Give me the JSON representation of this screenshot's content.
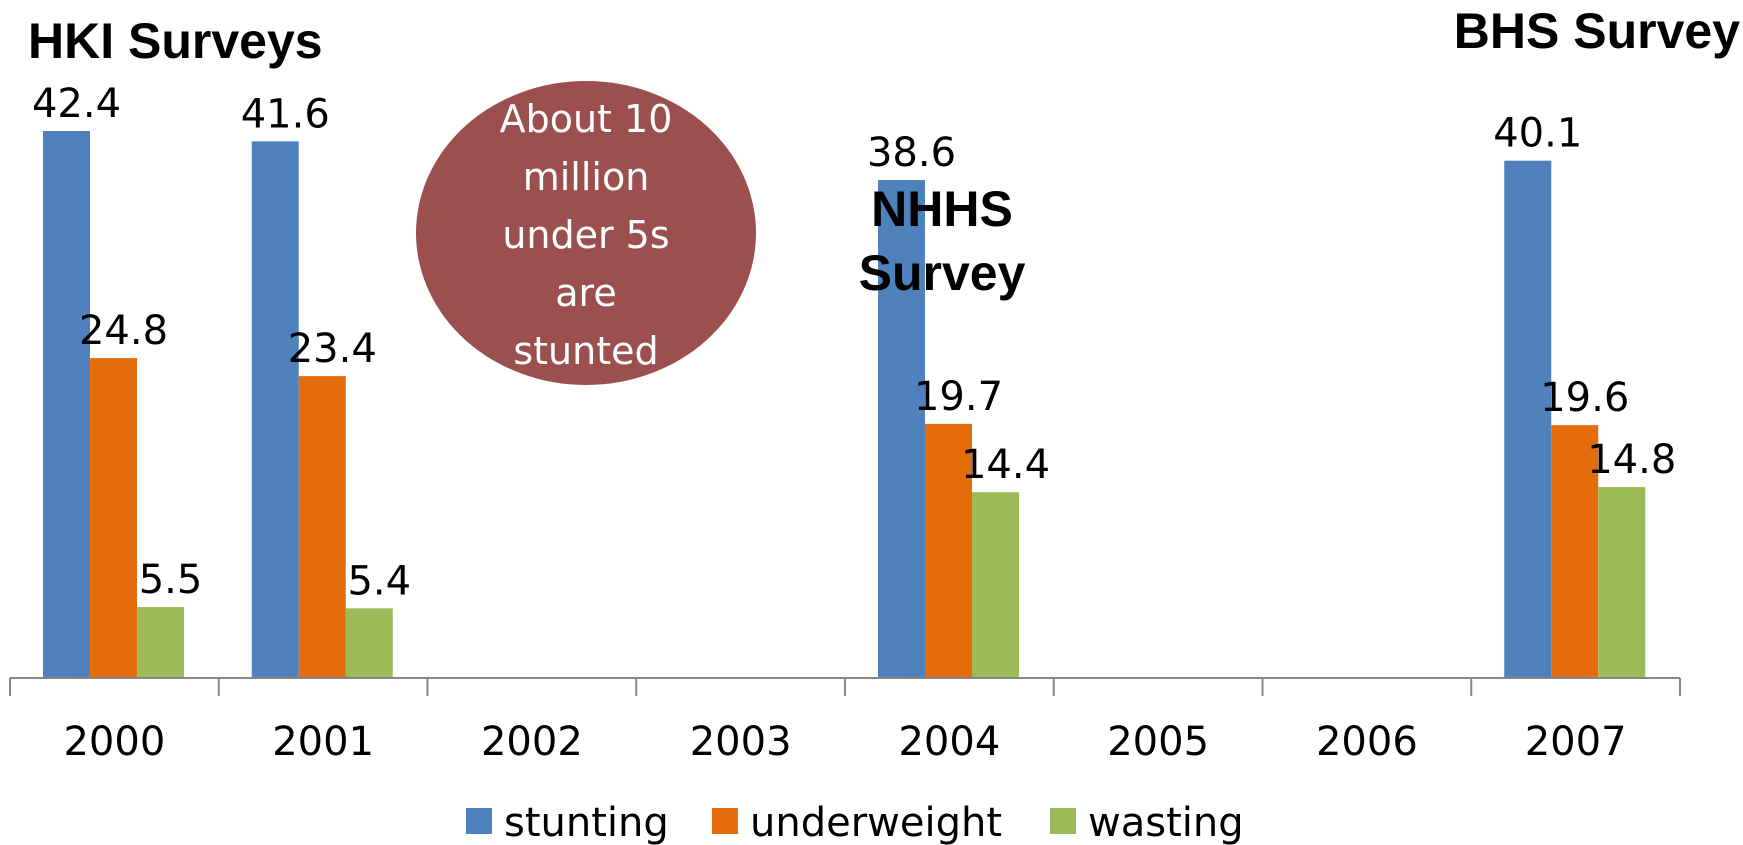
{
  "chart_data": {
    "type": "bar",
    "categories": [
      "2000",
      "2001",
      "2002",
      "2003",
      "2004",
      "2005",
      "2006",
      "2007"
    ],
    "series": [
      {
        "name": "stunting",
        "color": "#4f81bd",
        "values": [
          42.4,
          41.6,
          null,
          null,
          38.6,
          null,
          null,
          40.1
        ]
      },
      {
        "name": "underweight",
        "color": "#e46c0a",
        "values": [
          24.8,
          23.4,
          null,
          null,
          19.7,
          null,
          null,
          19.6
        ]
      },
      {
        "name": "wasting",
        "color": "#9bbb59",
        "values": [
          5.5,
          5.4,
          null,
          null,
          14.4,
          null,
          null,
          14.8
        ]
      }
    ],
    "ylim": [
      0,
      42.4
    ],
    "grid": false,
    "legend_position": "bottom",
    "annotations": {
      "hki": "HKI Surveys",
      "nhhs": [
        "NHHS",
        "Survey"
      ],
      "bhs": "BHS Survey",
      "callout": [
        "About 10",
        "million",
        "under 5s",
        "are",
        "stunted"
      ],
      "callout_color": "#9c4f4f"
    }
  }
}
